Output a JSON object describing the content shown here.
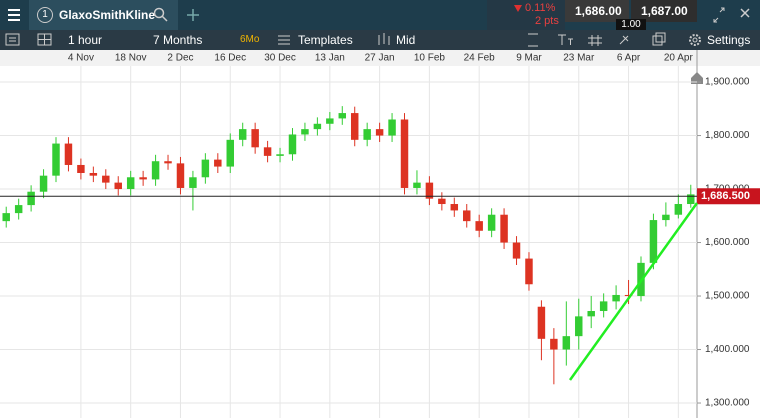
{
  "toolbar": {
    "tab_number": "1",
    "instrument": "GlaxoSmithKline",
    "change_percent": "0.11%",
    "change_points": "2 pts",
    "sell_price": "1,686.00",
    "buy_price": "1,687.00",
    "spread": "1.00",
    "interval": "1 hour",
    "range": "7 Months",
    "range_badge": "6Mo",
    "templates": "Templates",
    "price_type": "Mid",
    "settings": "Settings"
  },
  "chart_data": {
    "type": "candlestick",
    "categories": [
      null,
      null,
      null,
      null,
      null,
      null,
      "4 Nov",
      null,
      null,
      null,
      "18 Nov",
      null,
      null,
      null,
      "2 Dec",
      null,
      null,
      null,
      "16 Dec",
      null,
      null,
      null,
      "30 Dec",
      null,
      null,
      null,
      "13 Jan",
      null,
      null,
      null,
      "27 Jan",
      null,
      null,
      null,
      "10 Feb",
      null,
      null,
      null,
      "24 Feb",
      null,
      null,
      null,
      "9 Mar",
      null,
      null,
      null,
      "23 Mar",
      null,
      null,
      null,
      "6 Apr",
      null,
      null,
      null,
      "20 Apr",
      null
    ],
    "open": [
      1640,
      1655,
      1670,
      1695,
      1725,
      1785,
      1745,
      1730,
      1725,
      1712,
      1700,
      1722,
      1718,
      1752,
      1748,
      1702,
      1722,
      1755,
      1742,
      1792,
      1812,
      1778,
      1762,
      1765,
      1802,
      1812,
      1822,
      1832,
      1842,
      1792,
      1812,
      1800,
      1830,
      1702,
      1712,
      1682,
      1672,
      1660,
      1640,
      1622,
      1652,
      1600,
      1570,
      1480,
      1420,
      1400,
      1425,
      1462,
      1472,
      1490,
      1502,
      1500,
      1562,
      1642,
      1652,
      1672
    ],
    "high": [
      1667,
      1682,
      1707,
      1737,
      1797,
      1797,
      1757,
      1742,
      1737,
      1724,
      1734,
      1734,
      1764,
      1764,
      1760,
      1734,
      1767,
      1767,
      1804,
      1824,
      1824,
      1790,
      1777,
      1814,
      1824,
      1834,
      1844,
      1855,
      1854,
      1824,
      1824,
      1842,
      1842,
      1735,
      1724,
      1694,
      1684,
      1672,
      1652,
      1664,
      1664,
      1612,
      1582,
      1492,
      1440,
      1490,
      1495,
      1500,
      1505,
      1520,
      1530,
      1574,
      1654,
      1675,
      1690,
      1708
    ],
    "low": [
      1628,
      1643,
      1658,
      1683,
      1713,
      1733,
      1718,
      1713,
      1700,
      1688,
      1688,
      1706,
      1706,
      1736,
      1690,
      1660,
      1710,
      1730,
      1730,
      1780,
      1766,
      1750,
      1750,
      1753,
      1790,
      1800,
      1810,
      1820,
      1780,
      1780,
      1788,
      1788,
      1690,
      1690,
      1670,
      1660,
      1648,
      1628,
      1610,
      1610,
      1588,
      1558,
      1510,
      1380,
      1335,
      1370,
      1400,
      1440,
      1460,
      1475,
      1485,
      1490,
      1550,
      1630,
      1645,
      1665
    ],
    "close": [
      1655,
      1670,
      1695,
      1725,
      1785,
      1745,
      1730,
      1725,
      1712,
      1700,
      1722,
      1718,
      1752,
      1748,
      1702,
      1722,
      1755,
      1742,
      1792,
      1812,
      1778,
      1762,
      1765,
      1802,
      1812,
      1822,
      1832,
      1842,
      1792,
      1812,
      1800,
      1830,
      1702,
      1712,
      1682,
      1672,
      1660,
      1640,
      1622,
      1652,
      1600,
      1570,
      1522,
      1420,
      1400,
      1425,
      1462,
      1472,
      1490,
      1502,
      1500,
      1562,
      1642,
      1652,
      1672,
      1690
    ],
    "up_color": "#33cc33",
    "down_color": "#dd3322",
    "ylim": [
      1272,
      1930
    ],
    "yticks": [
      {
        "value": 1300,
        "label": "1,300.000"
      },
      {
        "value": 1400,
        "label": "1,400.000"
      },
      {
        "value": 1500,
        "label": "1,500.000"
      },
      {
        "value": 1600,
        "label": "1,600.000"
      },
      {
        "value": 1700,
        "label": "1,700.000"
      },
      {
        "value": 1800,
        "label": "1,800.000"
      },
      {
        "value": 1900,
        "label": "1,900.000"
      }
    ],
    "last_price": {
      "value": 1686.5,
      "label": "1,686.500"
    },
    "grid": true
  }
}
